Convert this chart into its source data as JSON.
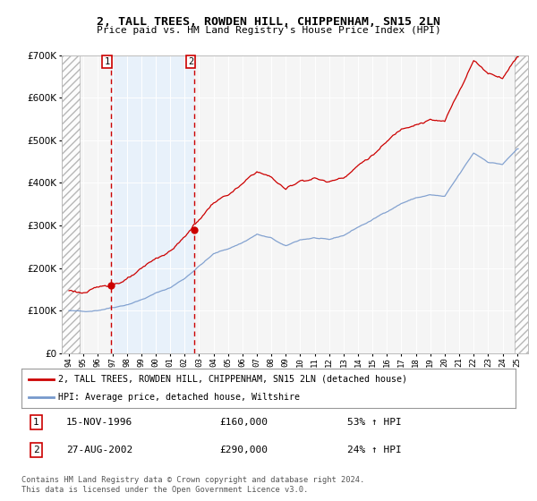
{
  "title": "2, TALL TREES, ROWDEN HILL, CHIPPENHAM, SN15 2LN",
  "subtitle": "Price paid vs. HM Land Registry's House Price Index (HPI)",
  "legend_line1": "2, TALL TREES, ROWDEN HILL, CHIPPENHAM, SN15 2LN (detached house)",
  "legend_line2": "HPI: Average price, detached house, Wiltshire",
  "transaction1_date": "15-NOV-1996",
  "transaction1_price": 160000,
  "transaction1_year": 1996.875,
  "transaction2_date": "27-AUG-2002",
  "transaction2_price": 290000,
  "transaction2_year": 2002.667,
  "footer1": "Contains HM Land Registry data © Crown copyright and database right 2024.",
  "footer2": "This data is licensed under the Open Government Licence v3.0.",
  "ylim": [
    0,
    700000
  ],
  "xlim_start": 1993.5,
  "xlim_end": 2025.75,
  "hatch_left_end": 1994.75,
  "hatch_right_start": 2024.83,
  "red_color": "#cc0000",
  "blue_color": "#7799cc",
  "blue_shade": "#ddeeff",
  "background_color": "#ffffff",
  "plot_bg_color": "#f5f5f5"
}
